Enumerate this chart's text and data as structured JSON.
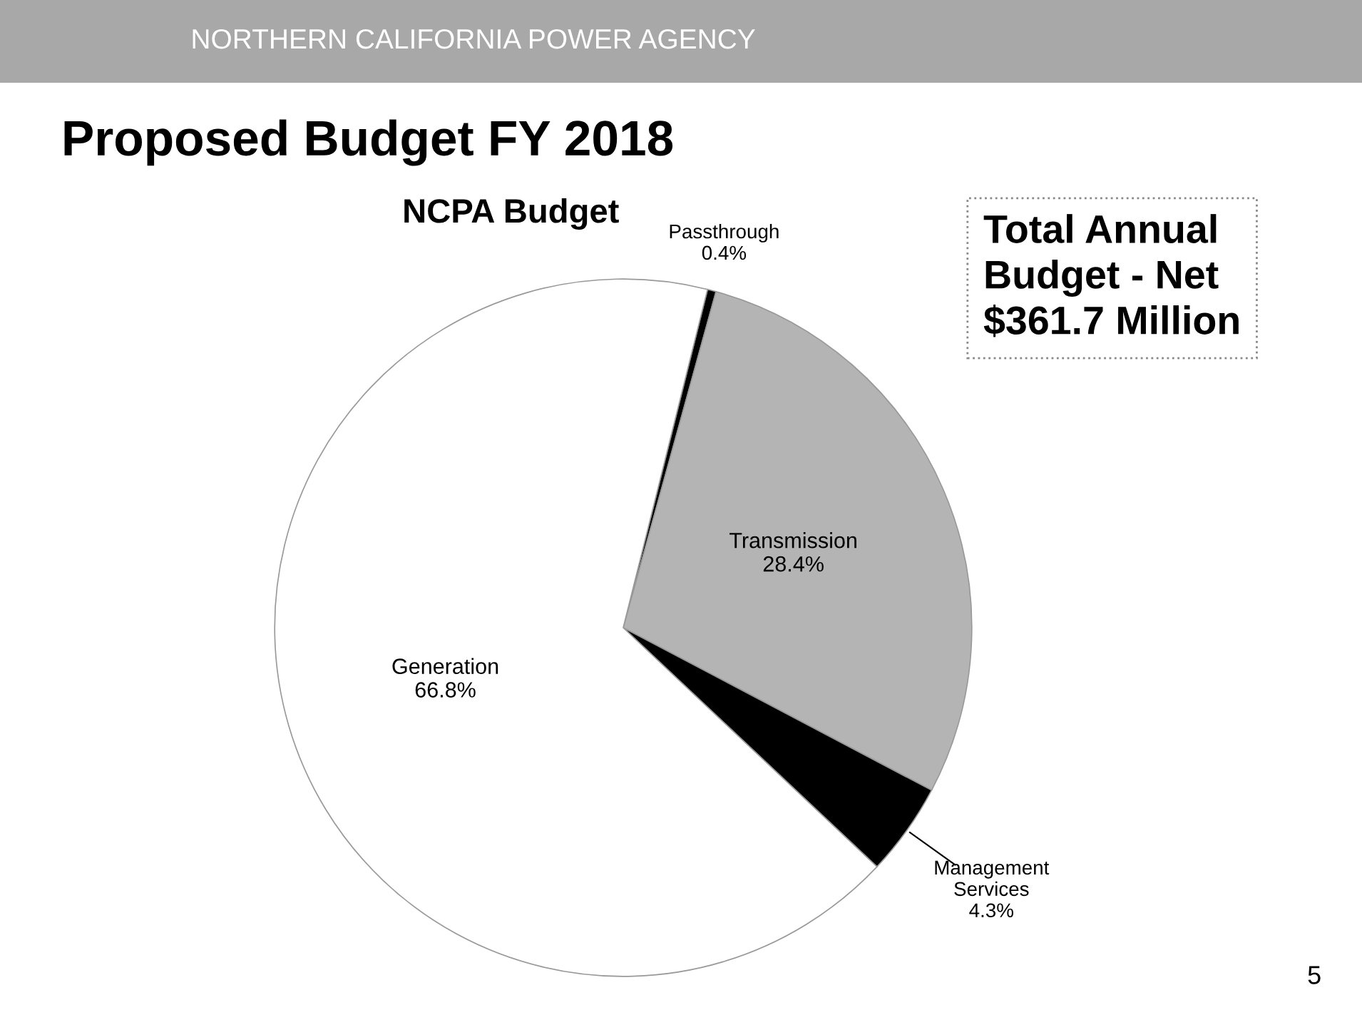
{
  "chart_data": {
    "type": "pie",
    "title": "Proposed Budget FY 2018",
    "subtitle": "NCPA Budget",
    "categories": [
      "Passthrough",
      "Transmission",
      "Management Services",
      "Generation"
    ],
    "values": [
      0.4,
      28.4,
      4.3,
      66.8
    ],
    "colors": [
      "#000000",
      "#b4b4b4",
      "#000000",
      "#ffffff"
    ],
    "annotations": [
      "NORTHERN CALIFORNIA POWER AGENCY",
      "Total Annual Budget - Net $361.7 Million",
      "5"
    ],
    "value_labels": [
      "0.4%",
      "28.4%",
      "4.3%",
      "66.8%"
    ],
    "legend": false
  }
}
